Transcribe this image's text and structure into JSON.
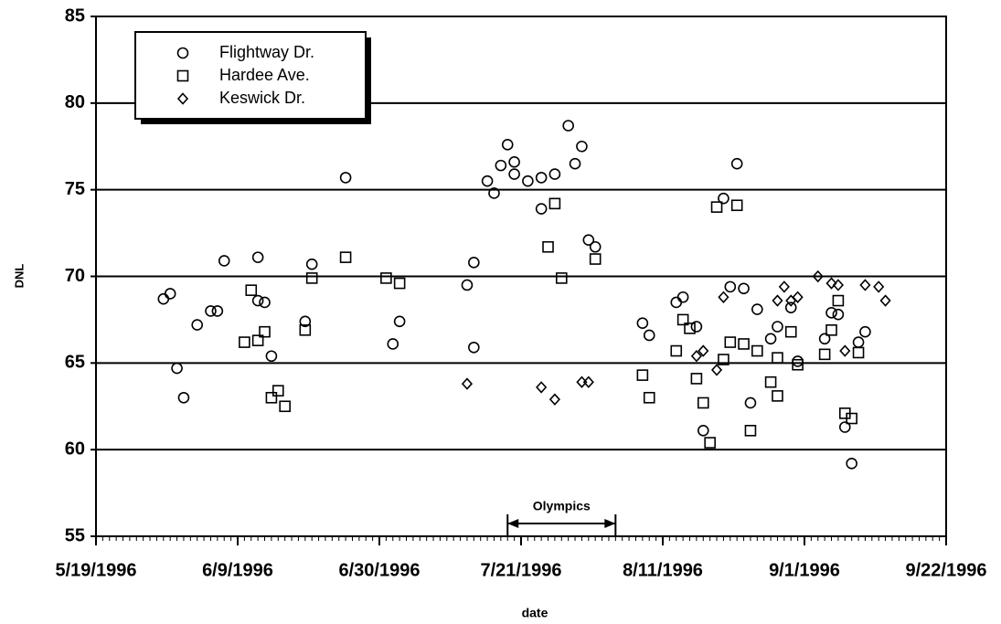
{
  "chart_data": {
    "type": "scatter",
    "x_label": "date",
    "y_label": "DNL",
    "xlim": [
      "1996-05-19",
      "1996-09-22"
    ],
    "xticks": [
      {
        "value": "1996-05-19",
        "label": "5/19/1996"
      },
      {
        "value": "1996-06-09",
        "label": "6/9/1996"
      },
      {
        "value": "1996-06-30",
        "label": "6/30/1996"
      },
      {
        "value": "1996-07-21",
        "label": "7/21/1996"
      },
      {
        "value": "1996-08-11",
        "label": "8/11/1996"
      },
      {
        "value": "1996-09-01",
        "label": "9/1/1996"
      },
      {
        "value": "1996-09-22",
        "label": "9/22/1996"
      }
    ],
    "ylim": [
      55,
      85
    ],
    "yticks": [
      55,
      60,
      65,
      70,
      75,
      80,
      85
    ],
    "grid": true,
    "legend": "upper left",
    "annotation": {
      "text": "Olympics",
      "x": [
        "1996-07-19",
        "1996-08-04"
      ]
    },
    "series": [
      {
        "name": "Flightway Dr.",
        "marker": "circle",
        "color": "#000000",
        "x": [
          "1996-05-29",
          "1996-05-30",
          "1996-05-31",
          "1996-06-01",
          "1996-06-03",
          "1996-06-05",
          "1996-06-06",
          "1996-06-07",
          "1996-06-12",
          "1996-06-12",
          "1996-06-13",
          "1996-06-14",
          "1996-06-19",
          "1996-06-20",
          "1996-06-25",
          "1996-07-02",
          "1996-07-03",
          "1996-07-13",
          "1996-07-14",
          "1996-07-14",
          "1996-07-16",
          "1996-07-17",
          "1996-07-18",
          "1996-07-19",
          "1996-07-20",
          "1996-07-20",
          "1996-07-22",
          "1996-07-24",
          "1996-07-24",
          "1996-07-26",
          "1996-07-28",
          "1996-07-29",
          "1996-07-30",
          "1996-07-31",
          "1996-08-01",
          "1996-08-08",
          "1996-08-09",
          "1996-08-13",
          "1996-08-14",
          "1996-08-16",
          "1996-08-17",
          "1996-08-20",
          "1996-08-22",
          "1996-08-21",
          "1996-08-23",
          "1996-08-24",
          "1996-08-25",
          "1996-08-27",
          "1996-08-28",
          "1996-08-30",
          "1996-08-31",
          "1996-09-04",
          "1996-09-05",
          "1996-09-06",
          "1996-09-07",
          "1996-09-08",
          "1996-09-09",
          "1996-09-10"
        ],
        "values": [
          68.7,
          69.0,
          64.7,
          63.0,
          67.2,
          68.0,
          68.0,
          70.9,
          71.1,
          68.6,
          68.5,
          65.4,
          67.4,
          70.7,
          75.7,
          66.1,
          67.4,
          69.5,
          70.8,
          65.9,
          75.5,
          74.8,
          76.4,
          77.6,
          76.6,
          75.9,
          75.5,
          75.7,
          73.9,
          75.9,
          78.7,
          76.5,
          77.5,
          72.1,
          71.7,
          67.3,
          66.6,
          68.5,
          68.8,
          67.1,
          61.1,
          74.5,
          76.5,
          69.4,
          69.3,
          62.7,
          68.1,
          66.4,
          67.1,
          68.2,
          65.1,
          66.4,
          67.9,
          67.8,
          61.3,
          59.2,
          66.2,
          66.8
        ]
      },
      {
        "name": "Hardee Ave.",
        "marker": "square",
        "color": "#000000",
        "x": [
          "1996-06-10",
          "1996-06-11",
          "1996-06-12",
          "1996-06-13",
          "1996-06-14",
          "1996-06-15",
          "1996-06-16",
          "1996-06-19",
          "1996-06-20",
          "1996-06-25",
          "1996-07-01",
          "1996-07-03",
          "1996-07-25",
          "1996-07-26",
          "1996-07-27",
          "1996-08-01",
          "1996-08-08",
          "1996-08-09",
          "1996-08-13",
          "1996-08-14",
          "1996-08-15",
          "1996-08-16",
          "1996-08-17",
          "1996-08-18",
          "1996-08-19",
          "1996-08-20",
          "1996-08-21",
          "1996-08-22",
          "1996-08-23",
          "1996-08-24",
          "1996-08-25",
          "1996-08-27",
          "1996-08-28",
          "1996-08-28",
          "1996-08-30",
          "1996-08-31",
          "1996-09-04",
          "1996-09-05",
          "1996-09-06",
          "1996-09-07",
          "1996-09-08",
          "1996-09-09"
        ],
        "values": [
          66.2,
          69.2,
          66.3,
          66.8,
          63.0,
          63.4,
          62.5,
          66.9,
          69.9,
          71.1,
          69.9,
          69.6,
          71.7,
          74.2,
          69.9,
          71.0,
          64.3,
          63.0,
          65.7,
          67.5,
          67.0,
          64.1,
          62.7,
          60.4,
          74.0,
          65.2,
          66.2,
          74.1,
          66.1,
          61.1,
          65.7,
          63.9,
          63.1,
          65.3,
          66.8,
          64.9,
          65.5,
          66.9,
          68.6,
          62.1,
          61.8,
          65.6
        ]
      },
      {
        "name": "Keswick Dr.",
        "marker": "diamond",
        "color": "#000000",
        "x": [
          "1996-07-13",
          "1996-07-24",
          "1996-07-26",
          "1996-07-30",
          "1996-07-31",
          "1996-08-16",
          "1996-08-17",
          "1996-08-19",
          "1996-08-20",
          "1996-08-28",
          "1996-08-29",
          "1996-08-30",
          "1996-08-31",
          "1996-09-03",
          "1996-09-05",
          "1996-09-06",
          "1996-09-07",
          "1996-09-10",
          "1996-09-12",
          "1996-09-13"
        ],
        "values": [
          63.8,
          63.6,
          62.9,
          63.9,
          63.9,
          65.4,
          65.7,
          64.6,
          68.8,
          68.6,
          69.4,
          68.6,
          68.8,
          70.0,
          69.6,
          69.5,
          65.7,
          69.5,
          69.4,
          68.6
        ]
      }
    ]
  }
}
